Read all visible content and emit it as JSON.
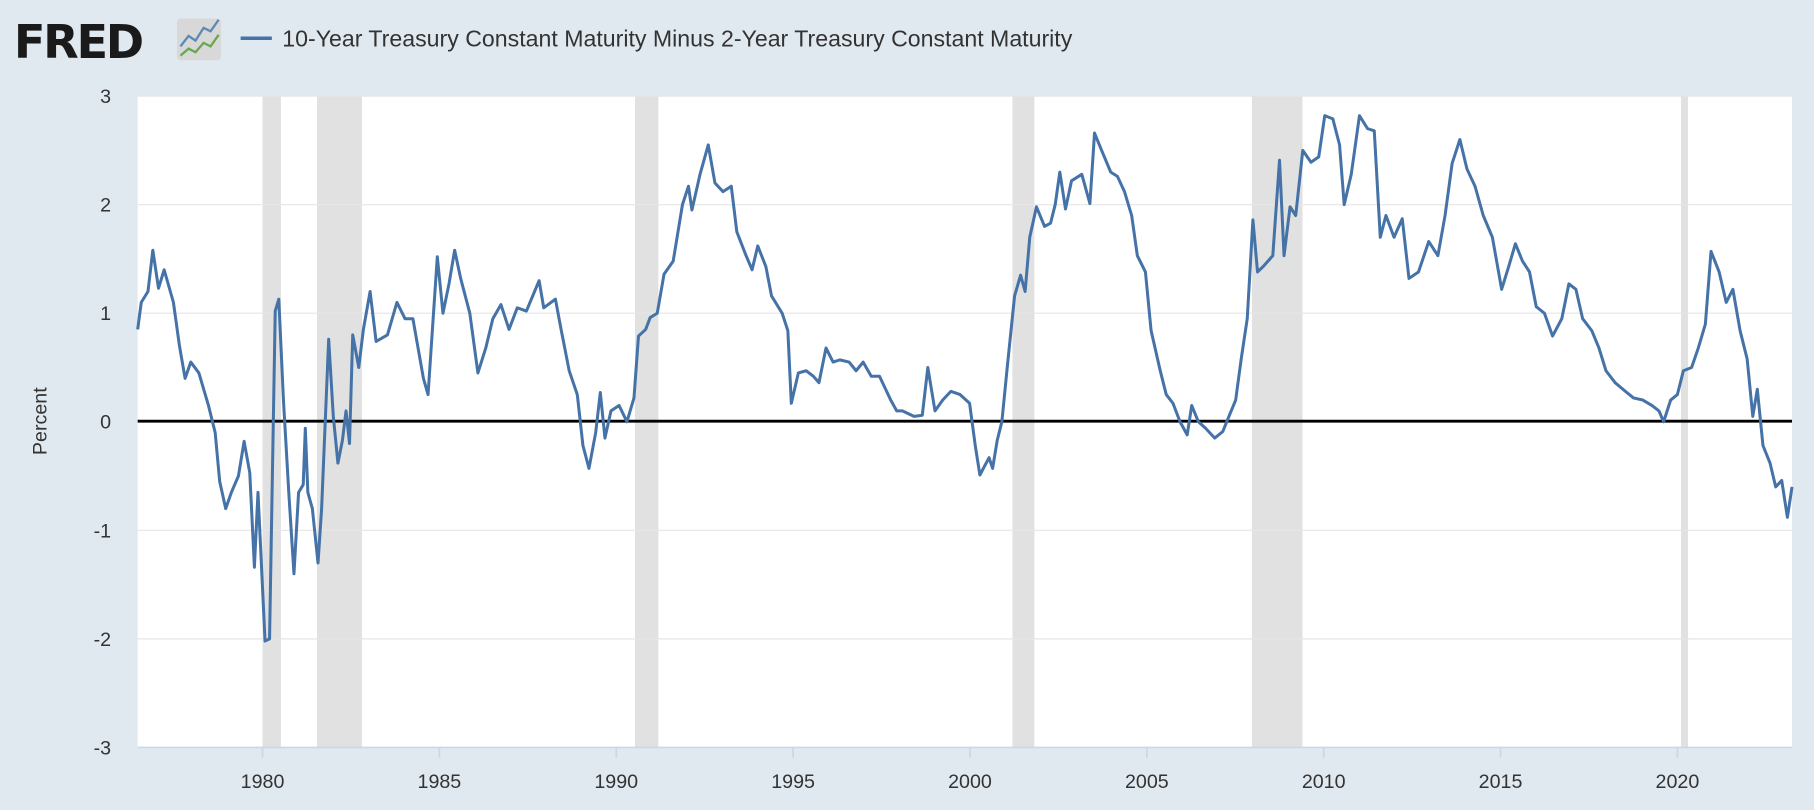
{
  "header": {
    "logo_text": "FRED",
    "logo_icon": "line-chart-icon",
    "legend_label": "10-Year Treasury Constant Maturity Minus 2-Year Treasury Constant Maturity"
  },
  "chart_data": {
    "type": "line",
    "title": "",
    "xlabel": "",
    "ylabel": "Percent",
    "xlim": [
      1976.47,
      2023.24
    ],
    "ylim": [
      -3,
      3
    ],
    "y_ticks": [
      "3",
      "2",
      "1",
      "0",
      "-1",
      "-2",
      "-3"
    ],
    "x_ticks": [
      "1980",
      "1985",
      "1990",
      "1995",
      "2000",
      "2005",
      "2010",
      "2015",
      "2020"
    ],
    "grid": true,
    "legend_position": "top-left",
    "colors": {
      "series": "#4572a7",
      "recession": "#e1e1e1",
      "zero_line": "#000000",
      "background": "#e1e9f0"
    },
    "recessions": [
      [
        1980.0,
        1980.52
      ],
      [
        1981.54,
        1982.81
      ],
      [
        1990.53,
        1991.19
      ],
      [
        2001.2,
        2001.82
      ],
      [
        2007.97,
        2009.4
      ],
      [
        2020.1,
        2020.3
      ]
    ],
    "series": [
      {
        "name": "10-Year Treasury Constant Maturity Minus 2-Year Treasury Constant Maturity",
        "x": [
          1976.47,
          1976.57,
          1976.76,
          1976.9,
          1977.06,
          1977.22,
          1977.48,
          1977.65,
          1977.81,
          1977.97,
          1978.2,
          1978.47,
          1978.66,
          1978.79,
          1978.96,
          1979.12,
          1979.32,
          1979.48,
          1979.64,
          1979.77,
          1979.87,
          1980.07,
          1980.2,
          1980.36,
          1980.46,
          1980.59,
          1980.75,
          1980.89,
          1981.02,
          1981.15,
          1981.21,
          1981.28,
          1981.41,
          1981.57,
          1981.67,
          1981.87,
          1982.0,
          1982.13,
          1982.26,
          1982.36,
          1982.46,
          1982.55,
          1982.72,
          1982.85,
          1983.04,
          1983.21,
          1983.53,
          1983.8,
          1984.03,
          1984.25,
          1984.55,
          1984.68,
          1984.94,
          1985.1,
          1985.27,
          1985.43,
          1985.6,
          1985.86,
          1986.09,
          1986.31,
          1986.51,
          1986.74,
          1986.97,
          1987.2,
          1987.46,
          1987.82,
          1987.95,
          1988.28,
          1988.44,
          1988.67,
          1988.9,
          1989.06,
          1989.23,
          1989.42,
          1989.55,
          1989.68,
          1989.85,
          1990.08,
          1990.3,
          1990.5,
          1990.63,
          1990.83,
          1990.96,
          1991.16,
          1991.35,
          1991.61,
          1991.87,
          1992.04,
          1992.14,
          1992.37,
          1992.6,
          1992.79,
          1993.02,
          1993.25,
          1993.41,
          1993.67,
          1993.84,
          1994.0,
          1994.23,
          1994.39,
          1994.69,
          1994.85,
          1994.95,
          1995.15,
          1995.37,
          1995.57,
          1995.73,
          1995.93,
          1996.13,
          1996.32,
          1996.58,
          1996.78,
          1996.98,
          1997.21,
          1997.44,
          1997.76,
          1997.93,
          1998.09,
          1998.42,
          1998.65,
          1998.81,
          1999.01,
          1999.23,
          1999.46,
          1999.72,
          1999.99,
          2000.15,
          2000.28,
          2000.54,
          2000.64,
          2000.77,
          2000.9,
          2001.07,
          2001.26,
          2001.43,
          2001.56,
          2001.69,
          2001.88,
          2002.11,
          2002.28,
          2002.41,
          2002.54,
          2002.7,
          2002.87,
          2003.16,
          2003.39,
          2003.52,
          2003.72,
          2003.98,
          2004.17,
          2004.37,
          2004.57,
          2004.73,
          2004.96,
          2005.12,
          2005.38,
          2005.55,
          2005.74,
          2005.94,
          2006.14,
          2006.27,
          2006.46,
          2006.66,
          2006.92,
          2007.15,
          2007.31,
          2007.51,
          2007.67,
          2007.84,
          2008.0,
          2008.13,
          2008.29,
          2008.56,
          2008.75,
          2008.88,
          2009.05,
          2009.21,
          2009.41,
          2009.64,
          2009.86,
          2010.03,
          2010.26,
          2010.45,
          2010.58,
          2010.78,
          2011.01,
          2011.24,
          2011.43,
          2011.6,
          2011.76,
          2011.99,
          2012.22,
          2012.41,
          2012.68,
          2012.97,
          2013.23,
          2013.43,
          2013.63,
          2013.85,
          2014.05,
          2014.28,
          2014.51,
          2014.77,
          2015.03,
          2015.23,
          2015.42,
          2015.62,
          2015.82,
          2016.01,
          2016.24,
          2016.47,
          2016.73,
          2016.93,
          2017.13,
          2017.32,
          2017.58,
          2017.78,
          2017.98,
          2018.24,
          2018.53,
          2018.76,
          2019.02,
          2019.28,
          2019.48,
          2019.61,
          2019.81,
          2020.0,
          2020.17,
          2020.4,
          2020.59,
          2020.79,
          2020.95,
          2021.18,
          2021.38,
          2021.57,
          2021.77,
          2021.97,
          2022.13,
          2022.26,
          2022.42,
          2022.62,
          2022.78,
          2022.95,
          2023.11,
          2023.24
        ],
        "y": [
          0.85,
          1.1,
          1.2,
          1.58,
          1.23,
          1.4,
          1.1,
          0.7,
          0.4,
          0.55,
          0.45,
          0.15,
          -0.1,
          -0.55,
          -0.8,
          -0.65,
          -0.5,
          -0.18,
          -0.47,
          -1.34,
          -0.65,
          -2.02,
          -2.0,
          1.02,
          1.13,
          0.2,
          -0.7,
          -1.4,
          -0.65,
          -0.58,
          -0.06,
          -0.65,
          -0.8,
          -1.3,
          -0.8,
          0.76,
          0.05,
          -0.38,
          -0.17,
          0.1,
          -0.2,
          0.8,
          0.5,
          0.85,
          1.2,
          0.74,
          0.8,
          1.1,
          0.95,
          0.95,
          0.4,
          0.25,
          1.52,
          1.0,
          1.27,
          1.58,
          1.32,
          1.0,
          0.45,
          0.68,
          0.95,
          1.08,
          0.85,
          1.05,
          1.02,
          1.3,
          1.05,
          1.13,
          0.85,
          0.47,
          0.25,
          -0.22,
          -0.43,
          -0.1,
          0.27,
          -0.15,
          0.1,
          0.15,
          0.0,
          0.22,
          0.79,
          0.85,
          0.96,
          1.0,
          1.36,
          1.48,
          2.0,
          2.17,
          1.95,
          2.28,
          2.55,
          2.2,
          2.12,
          2.17,
          1.75,
          1.53,
          1.4,
          1.62,
          1.43,
          1.16,
          1.0,
          0.84,
          0.17,
          0.45,
          0.47,
          0.42,
          0.36,
          0.68,
          0.55,
          0.57,
          0.55,
          0.47,
          0.55,
          0.42,
          0.42,
          0.2,
          0.1,
          0.1,
          0.05,
          0.06,
          0.5,
          0.1,
          0.2,
          0.28,
          0.25,
          0.17,
          -0.22,
          -0.49,
          -0.33,
          -0.43,
          -0.17,
          0.0,
          0.55,
          1.16,
          1.35,
          1.2,
          1.7,
          1.98,
          1.8,
          1.83,
          2.0,
          2.3,
          1.96,
          2.22,
          2.28,
          2.01,
          2.66,
          2.5,
          2.3,
          2.26,
          2.12,
          1.9,
          1.53,
          1.38,
          0.84,
          0.47,
          0.25,
          0.17,
          0.0,
          -0.12,
          0.15,
          0.0,
          -0.06,
          -0.15,
          -0.09,
          0.04,
          0.2,
          0.58,
          0.95,
          1.86,
          1.38,
          1.43,
          1.53,
          2.41,
          1.53,
          1.98,
          1.9,
          2.5,
          2.39,
          2.44,
          2.82,
          2.79,
          2.55,
          2.0,
          2.28,
          2.82,
          2.7,
          2.68,
          1.7,
          1.9,
          1.7,
          1.87,
          1.32,
          1.38,
          1.66,
          1.53,
          1.9,
          2.38,
          2.6,
          2.33,
          2.17,
          1.9,
          1.7,
          1.22,
          1.43,
          1.64,
          1.48,
          1.38,
          1.06,
          1.0,
          0.79,
          0.95,
          1.27,
          1.22,
          0.95,
          0.84,
          0.68,
          0.47,
          0.36,
          0.28,
          0.22,
          0.2,
          0.15,
          0.1,
          0.0,
          0.2,
          0.25,
          0.47,
          0.5,
          0.68,
          0.9,
          1.57,
          1.38,
          1.1,
          1.22,
          0.84,
          0.58,
          0.05,
          0.3,
          -0.22,
          -0.38,
          -0.6,
          -0.54,
          -0.88,
          -0.6
        ]
      }
    ]
  }
}
